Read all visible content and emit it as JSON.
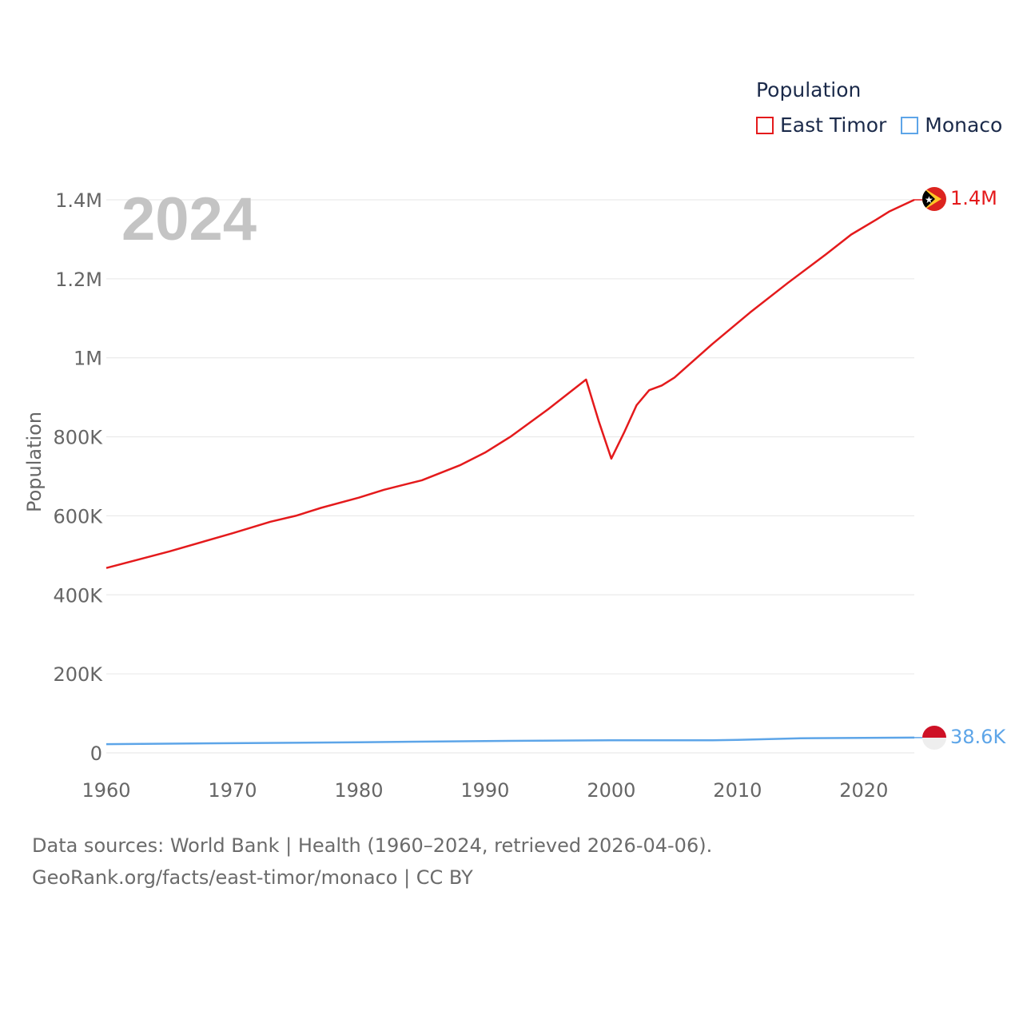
{
  "legend": {
    "title": "Population",
    "items": [
      {
        "name": "East Timor",
        "color": "#e41a1c"
      },
      {
        "name": "Monaco",
        "color": "#5da5e8"
      }
    ]
  },
  "footer": {
    "line1": "Data sources: World Bank | Health (1960–2024, retrieved 2026-04-06).",
    "line2": "GeoRank.org/facts/east-timor/monaco | CC BY"
  },
  "chart_data": {
    "type": "line",
    "year_label": "2024",
    "ylabel": "Population",
    "xlabel": "",
    "xlim": [
      1960,
      2024
    ],
    "ylim": [
      0,
      1400000
    ],
    "x_ticks": [
      1960,
      1970,
      1980,
      1990,
      2000,
      2010,
      2020
    ],
    "x_tick_labels": [
      "1960",
      "1970",
      "1980",
      "1990",
      "2000",
      "2010",
      "2020"
    ],
    "y_ticks": [
      0,
      200000,
      400000,
      600000,
      800000,
      1000000,
      1200000,
      1400000
    ],
    "y_tick_labels": [
      "0",
      "200K",
      "400K",
      "600K",
      "800K",
      "1M",
      "1.2M",
      "1.4M"
    ],
    "grid": true,
    "legend_position": "top-right",
    "series": [
      {
        "name": "East Timor",
        "color": "#e41a1c",
        "end_label": "1.4M",
        "points": [
          [
            1960,
            468000
          ],
          [
            1965,
            510000
          ],
          [
            1970,
            556000
          ],
          [
            1973,
            585000
          ],
          [
            1975,
            600000
          ],
          [
            1977,
            620000
          ],
          [
            1980,
            646000
          ],
          [
            1982,
            666000
          ],
          [
            1985,
            690000
          ],
          [
            1988,
            728000
          ],
          [
            1990,
            760000
          ],
          [
            1992,
            800000
          ],
          [
            1995,
            870000
          ],
          [
            1998,
            945000
          ],
          [
            1999,
            840000
          ],
          [
            2000,
            745000
          ],
          [
            2001,
            810000
          ],
          [
            2002,
            880000
          ],
          [
            2003,
            918000
          ],
          [
            2004,
            930000
          ],
          [
            2005,
            950000
          ],
          [
            2008,
            1035000
          ],
          [
            2011,
            1115000
          ],
          [
            2014,
            1190000
          ],
          [
            2017,
            1262000
          ],
          [
            2019,
            1312000
          ],
          [
            2021,
            1350000
          ],
          [
            2022,
            1370000
          ],
          [
            2023,
            1385000
          ],
          [
            2024,
            1400000
          ]
        ]
      },
      {
        "name": "Monaco",
        "color": "#5da5e8",
        "end_label": "38.6K",
        "points": [
          [
            1960,
            22000
          ],
          [
            1970,
            24500
          ],
          [
            1980,
            27000
          ],
          [
            1990,
            30000
          ],
          [
            2000,
            32000
          ],
          [
            2008,
            32000
          ],
          [
            2010,
            33000
          ],
          [
            2015,
            37000
          ],
          [
            2020,
            38000
          ],
          [
            2024,
            38600
          ]
        ]
      }
    ]
  }
}
